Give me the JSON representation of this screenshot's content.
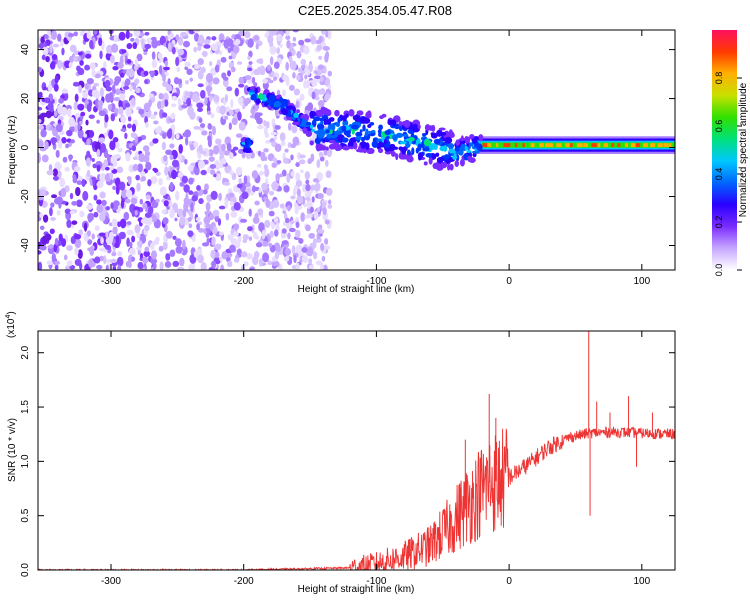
{
  "title": "C2E5.2025.354.05.47.R08",
  "chart_data": [
    {
      "type": "heatmap",
      "xlabel": "Height of straight line (km)",
      "ylabel": "Frequency (Hz)",
      "xlim": [
        -355,
        125
      ],
      "ylim": [
        -50,
        48
      ],
      "x_ticks": [
        -300,
        -200,
        -100,
        0,
        100
      ],
      "x_tick_labels": [
        "-300",
        "-200",
        "-100",
        "0",
        "100"
      ],
      "y_ticks": [
        -40,
        -20,
        0,
        20,
        40
      ],
      "y_tick_labels": [
        "-40",
        "-20",
        "0",
        "20",
        "40"
      ],
      "colorbar": {
        "label": "Normalized spectral amplitude",
        "range": [
          0,
          1
        ],
        "ticks": [
          0.0,
          0.2,
          0.4,
          0.6,
          0.8
        ],
        "tick_labels": [
          "0.0",
          "0.2",
          "0.4",
          "0.6",
          "0.8"
        ],
        "colors": [
          "#ffffff",
          "#c7a6ff",
          "#7a2bff",
          "#2a00ff",
          "#0066ff",
          "#00c8ff",
          "#00e07a",
          "#30e000",
          "#c8e000",
          "#ffb000",
          "#ff3a00",
          "#ff1060"
        ]
      },
      "regions": [
        {
          "name": "noise",
          "x_range": [
            -355,
            -135
          ],
          "freq_range": [
            -50,
            48
          ],
          "amplitude": 0.1
        },
        {
          "name": "track",
          "points": [
            {
              "x": -195,
              "freq": 22
            },
            {
              "x": -170,
              "freq": 17
            },
            {
              "x": -150,
              "freq": 8
            },
            {
              "x": -120,
              "freq": 7
            },
            {
              "x": -90,
              "freq": 5
            },
            {
              "x": -60,
              "freq": 1
            },
            {
              "x": -40,
              "freq": -2
            },
            {
              "x": -20,
              "freq": 1
            },
            {
              "x": 0,
              "freq": 1
            },
            {
              "x": 50,
              "freq": 1
            },
            {
              "x": 100,
              "freq": 1
            },
            {
              "x": 125,
              "freq": 1
            }
          ]
        }
      ]
    },
    {
      "type": "line",
      "xlabel": "Height of straight line (km)",
      "ylabel": "SNR (10 * v/v)",
      "y_multiplier": "(x10",
      "y_multiplier_exp": "4",
      "y_multiplier_close": ")",
      "xlim": [
        -355,
        125
      ],
      "ylim": [
        0,
        2.2
      ],
      "x_ticks": [
        -300,
        -200,
        -100,
        0,
        100
      ],
      "x_tick_labels": [
        "-300",
        "-200",
        "-100",
        "0",
        "100"
      ],
      "y_ticks": [
        0.0,
        0.5,
        1.0,
        1.5,
        2.0
      ],
      "y_tick_labels": [
        "0.0",
        "0.5",
        "1.0",
        "1.5",
        "2.0"
      ],
      "series_color": "#ee3333",
      "envelope": [
        {
          "x": -355,
          "y": 0.0
        },
        {
          "x": -200,
          "y": 0.0
        },
        {
          "x": -120,
          "y": 0.02
        },
        {
          "x": -100,
          "y": 0.06
        },
        {
          "x": -80,
          "y": 0.12
        },
        {
          "x": -60,
          "y": 0.22
        },
        {
          "x": -45,
          "y": 0.4
        },
        {
          "x": -30,
          "y": 0.62
        },
        {
          "x": -15,
          "y": 0.8
        },
        {
          "x": 0,
          "y": 0.85
        },
        {
          "x": 15,
          "y": 0.98
        },
        {
          "x": 30,
          "y": 1.13
        },
        {
          "x": 45,
          "y": 1.22
        },
        {
          "x": 60,
          "y": 1.26
        },
        {
          "x": 80,
          "y": 1.27
        },
        {
          "x": 100,
          "y": 1.26
        },
        {
          "x": 125,
          "y": 1.25
        }
      ],
      "peaks": [
        {
          "x": -33,
          "y": 1.2
        },
        {
          "x": -15,
          "y": 1.62
        },
        {
          "x": -10,
          "y": 1.4
        },
        {
          "x": 60,
          "y": 2.22
        },
        {
          "x": 61,
          "y": 0.5
        },
        {
          "x": 66,
          "y": 1.55
        },
        {
          "x": 76,
          "y": 1.45
        },
        {
          "x": 90,
          "y": 1.6
        },
        {
          "x": 96,
          "y": 0.95
        },
        {
          "x": 108,
          "y": 1.45
        }
      ]
    }
  ]
}
